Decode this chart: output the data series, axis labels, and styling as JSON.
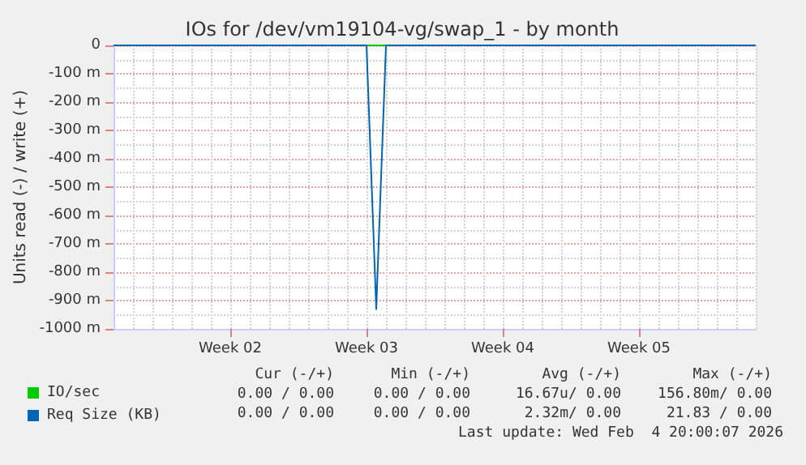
{
  "chart_data": {
    "type": "line",
    "title": "IOs for /dev/vm19104-vg/swap_1 - by month",
    "ylabel": "Units read (-) / write (+)",
    "categories": [
      null,
      null,
      null,
      null,
      null,
      null,
      null,
      null,
      null,
      null,
      null,
      null,
      "Week 02",
      null,
      null,
      null,
      null,
      null,
      null,
      null,
      null,
      null,
      null,
      null,
      null,
      null,
      "Week 03",
      null,
      null,
      null,
      null,
      null,
      null,
      null,
      null,
      null,
      null,
      null,
      null,
      null,
      "Week 04",
      null,
      null,
      null,
      null,
      null,
      null,
      null,
      null,
      null,
      null,
      null,
      null,
      null,
      "Week 05",
      null,
      null,
      null,
      null,
      null,
      null,
      null,
      null,
      null,
      null,
      null,
      null
    ],
    "ylim": [
      -1000,
      0
    ],
    "yticks": [
      0,
      {
        "value": -100,
        "label": "-100 m"
      },
      {
        "value": -200,
        "label": "-200 m"
      },
      {
        "value": -300,
        "label": "-300 m"
      },
      {
        "value": -400,
        "label": "-400 m"
      },
      {
        "value": -500,
        "label": "-500 m"
      },
      {
        "value": -600,
        "label": "-600 m"
      },
      {
        "value": -700,
        "label": "-700 m"
      },
      {
        "value": -800,
        "label": "-800 m"
      },
      {
        "value": -900,
        "label": "-900 m"
      },
      {
        "value": -1000,
        "label": "-1000 m"
      }
    ],
    "series": [
      {
        "name": "IO/sec",
        "color": "#00cc00",
        "values": [
          null,
          null,
          null,
          null,
          null,
          null,
          null,
          null,
          null,
          null,
          null,
          null,
          null,
          null,
          null,
          null,
          null,
          null,
          null,
          null,
          null,
          null,
          null,
          null,
          null,
          null,
          0,
          0,
          0,
          null,
          null,
          null,
          null,
          null,
          null,
          null,
          null,
          null,
          null,
          null,
          null,
          null,
          null,
          null,
          null,
          null,
          null,
          null,
          null,
          null,
          null,
          null,
          null,
          null,
          null,
          null,
          null,
          null,
          null,
          null,
          null,
          null,
          null,
          null,
          null,
          null,
          null
        ]
      },
      {
        "name": "Req Size (KB)",
        "color": "#0066b3",
        "values": [
          0,
          0,
          0,
          0,
          0,
          0,
          0,
          0,
          0,
          0,
          0,
          0,
          0,
          0,
          0,
          0,
          0,
          0,
          0,
          0,
          0,
          0,
          0,
          0,
          0,
          0,
          0,
          -930,
          0,
          0,
          0,
          0,
          0,
          0,
          0,
          0,
          0,
          0,
          0,
          0,
          0,
          0,
          0,
          0,
          0,
          0,
          0,
          0,
          0,
          0,
          0,
          0,
          0,
          0,
          0,
          0,
          0,
          0,
          0,
          0,
          0,
          0,
          0,
          0,
          0,
          0,
          0
        ]
      }
    ],
    "grid": true,
    "legend": "bottom left",
    "marker": "none",
    "line_style": "solid",
    "annotations": [
      "Cur (-/+)",
      "Min (-/+)",
      "Avg (-/+)",
      "Max (-/+)",
      "0.00 / 0.00",
      "0.00 / 0.00",
      "16.67u/ 0.00",
      "156.80m/ 0.00",
      "0.00 / 0.00",
      "0.00 / 0.00",
      "2.32m/ 0.00",
      "21.83 / 0.00",
      "Last update: Wed Feb  4 20:00:07 2026"
    ]
  }
}
